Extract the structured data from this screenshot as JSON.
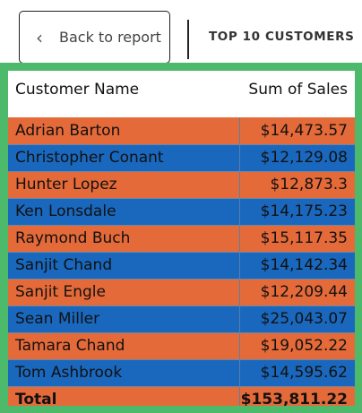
{
  "header": {
    "back_label": "Back to report",
    "back_icon": "chevron-left-icon",
    "title": "TOP 10 CUSTOMERS"
  },
  "table": {
    "columns": [
      "Customer Name",
      "Sum of Sales"
    ],
    "rows": [
      {
        "name": "Adrian Barton",
        "sales": "$14,473.57"
      },
      {
        "name": "Christopher Conant",
        "sales": "$12,129.08"
      },
      {
        "name": "Hunter Lopez",
        "sales": "$12,873.3"
      },
      {
        "name": "Ken Lonsdale",
        "sales": "$14,175.23"
      },
      {
        "name": "Raymond Buch",
        "sales": "$15,117.35"
      },
      {
        "name": "Sanjit Chand",
        "sales": "$14,142.34"
      },
      {
        "name": "Sanjit Engle",
        "sales": "$12,209.44"
      },
      {
        "name": "Sean Miller",
        "sales": "$25,043.07"
      },
      {
        "name": "Tamara Chand",
        "sales": "$19,052.22"
      },
      {
        "name": "Tom Ashbrook",
        "sales": "$14,595.62"
      }
    ],
    "total_label": "Total",
    "total_value": "$153,811.22"
  },
  "colors": {
    "orange_row": "#e56a39",
    "blue_row": "#1a68bd",
    "visual_border": "#4cb96b"
  }
}
